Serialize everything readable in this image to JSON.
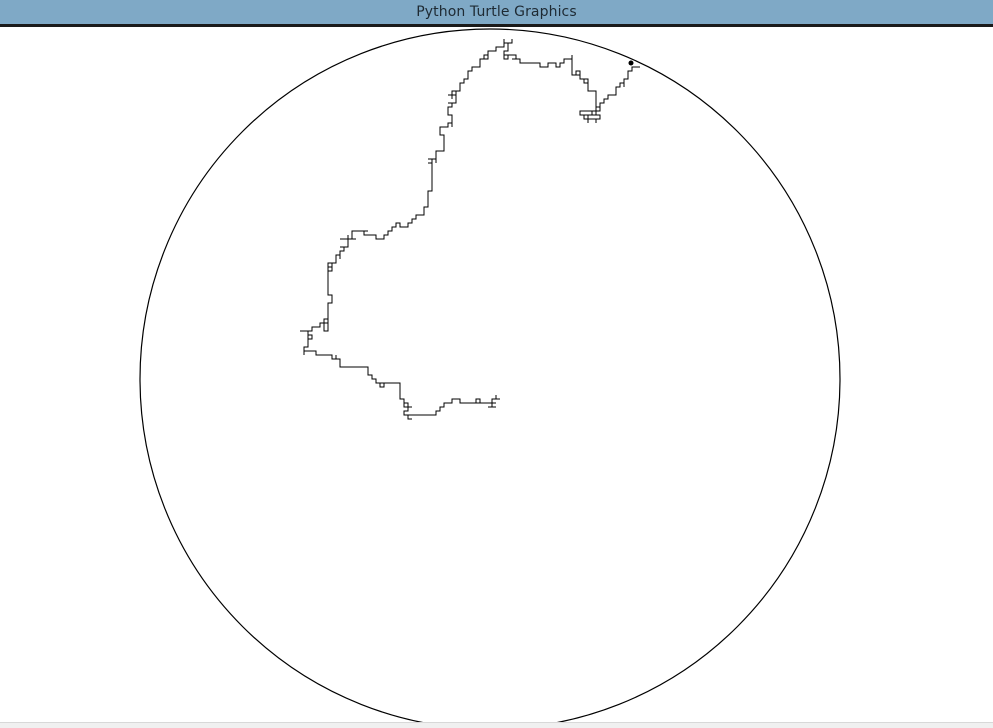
{
  "window": {
    "title": "Python Turtle Graphics"
  },
  "colors": {
    "titlebar": "#7fa9c6",
    "pen": "#000000",
    "background": "#ffffff"
  },
  "drawing": {
    "shapes": [
      "boundary-circle",
      "random-walk-path"
    ],
    "turtle_icon": "turtle-cursor-icon"
  }
}
